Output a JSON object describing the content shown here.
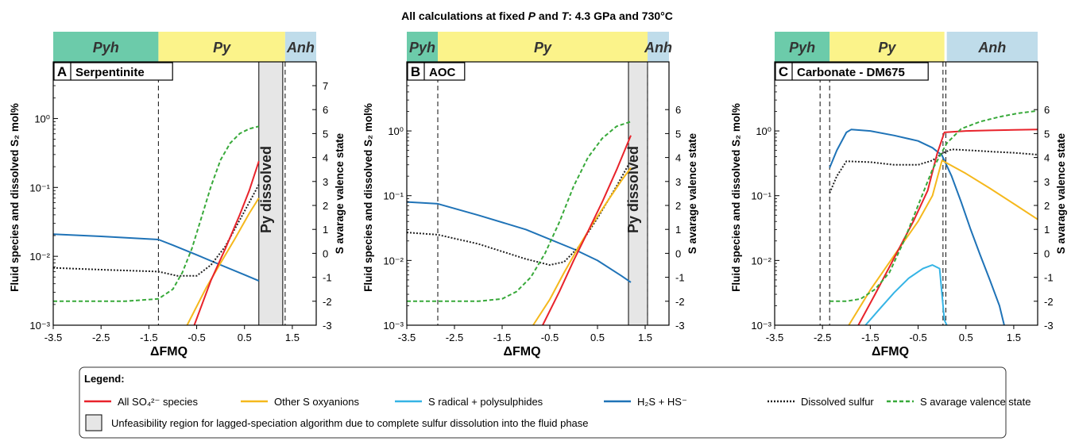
{
  "figure_title": {
    "prefix": "All calculations at fixed ",
    "P": "P",
    "and": " and ",
    "T": "T",
    "suffix": ": 4.3 GPa and 730°C"
  },
  "colors": {
    "so4": "#e8232b",
    "oxyanions": "#f5b81c",
    "radical": "#35b4e5",
    "h2s": "#1f73b7",
    "dissolved": "#222222",
    "valence": "#38a93a",
    "pyh": "#6ccbaa",
    "py": "#fbf38a",
    "anh": "#bfdcea",
    "unfeasible": "#e6e6e6"
  },
  "chart_data": [
    {
      "type": "line",
      "panel": "A",
      "title": "Serpentinite",
      "xlabel": "ΔFMQ",
      "ylabel": "Fluid species and dissolved S₂ mol%",
      "y2label": "S avarage valence state",
      "xlim": [
        -3.5,
        2.0
      ],
      "ylim": [
        0.001,
        3
      ],
      "y2lim": [
        -3,
        7
      ],
      "y_scale": "log",
      "x_ticks": [
        "-3.5",
        "-2.5",
        "-1.5",
        "-0.5",
        "0.5",
        "1.5"
      ],
      "x_tick_values": [
        -3.5,
        -2.5,
        -1.5,
        -0.5,
        0.5,
        1.5
      ],
      "y_ticks": [
        "10⁻³",
        "10⁻²",
        "10⁻¹",
        "10⁰"
      ],
      "y_tick_values": [
        0.001,
        0.01,
        0.1,
        1
      ],
      "y2_ticks": [
        "-3",
        "-2",
        "-1",
        "0",
        "1",
        "2",
        "3",
        "4",
        "5",
        "6",
        "7"
      ],
      "y2_tick_values": [
        -3,
        -2,
        -1,
        0,
        1,
        2,
        3,
        4,
        5,
        6,
        7
      ],
      "stability": [
        {
          "label": "Pyh",
          "from": -3.5,
          "to": -1.3,
          "color": "#6ccbaa"
        },
        {
          "label": "Py",
          "from": -1.3,
          "to": 1.35,
          "color": "#fbf38a"
        },
        {
          "label": "Anh",
          "from": 1.35,
          "to": 2.0,
          "color": "#bfdcea"
        }
      ],
      "vlines": [
        -1.3,
        1.35
      ],
      "unfeasible": {
        "from": 0.8,
        "to": 1.3,
        "label": "Py dissolved"
      },
      "series": [
        {
          "key": "h2s",
          "axis": "left",
          "x": [
            -3.5,
            -2.5,
            -1.3,
            -1.0,
            -0.5,
            0.0,
            0.5,
            0.8
          ],
          "y": [
            0.021,
            0.0195,
            0.0175,
            0.0145,
            0.0105,
            0.0075,
            0.0054,
            0.0044
          ]
        },
        {
          "key": "dissolved",
          "axis": "left",
          "x": [
            -3.5,
            -2.5,
            -1.3,
            -0.9,
            -0.5,
            -0.2,
            0.1,
            0.5,
            0.8
          ],
          "y": [
            0.0068,
            0.0064,
            0.006,
            0.0052,
            0.0052,
            0.0075,
            0.014,
            0.045,
            0.11
          ]
        },
        {
          "key": "oxyanions",
          "axis": "left",
          "x": [
            -0.7,
            -0.3,
            0.0,
            0.3,
            0.6,
            0.8
          ],
          "y": [
            0.001,
            0.0035,
            0.008,
            0.018,
            0.042,
            0.07
          ]
        },
        {
          "key": "so4",
          "axis": "left",
          "x": [
            -0.55,
            -0.2,
            0.1,
            0.4,
            0.6,
            0.8
          ],
          "y": [
            0.001,
            0.0045,
            0.013,
            0.04,
            0.09,
            0.24
          ]
        },
        {
          "key": "valence",
          "axis": "right",
          "x": [
            -3.5,
            -2.0,
            -1.3,
            -1.0,
            -0.8,
            -0.6,
            -0.4,
            -0.2,
            0.0,
            0.2,
            0.4,
            0.6,
            0.8
          ],
          "y": [
            -2.0,
            -2.0,
            -1.9,
            -1.5,
            -0.8,
            0.2,
            1.5,
            2.8,
            3.9,
            4.6,
            5.0,
            5.2,
            5.3
          ]
        }
      ]
    },
    {
      "type": "line",
      "panel": "B",
      "title": "AOC",
      "xlabel": "ΔFMQ",
      "ylabel": "Fluid species and dissolved S₂ mol%",
      "y2label": "S avarage valence state",
      "xlim": [
        -3.5,
        2.0
      ],
      "ylim": [
        0.001,
        5
      ],
      "y2lim": [
        -3,
        7
      ],
      "y_scale": "log",
      "x_ticks": [
        "-3.5",
        "-2.5",
        "-1.5",
        "-0.5",
        "0.5",
        "1.5"
      ],
      "x_tick_values": [
        -3.5,
        -2.5,
        -1.5,
        -0.5,
        0.5,
        1.5
      ],
      "y_ticks": [
        "10⁻³",
        "10⁻²",
        "10⁻¹",
        "10⁰"
      ],
      "y_tick_values": [
        0.001,
        0.01,
        0.1,
        1
      ],
      "y2_ticks": [
        "-3",
        "-2",
        "-1",
        "0",
        "1",
        "2",
        "3",
        "4",
        "5",
        "6"
      ],
      "y2_tick_values": [
        -3,
        -2,
        -1,
        0,
        1,
        2,
        3,
        4,
        5,
        6
      ],
      "stability": [
        {
          "label": "Pyh",
          "from": -3.5,
          "to": -2.85,
          "color": "#6ccbaa"
        },
        {
          "label": "Py",
          "from": -2.85,
          "to": 1.55,
          "color": "#fbf38a"
        },
        {
          "label": "Anh",
          "from": 1.55,
          "to": 2.0,
          "color": "#bfdcea"
        }
      ],
      "vlines": [
        -2.85,
        1.55
      ],
      "unfeasible": {
        "from": 1.15,
        "to": 1.55,
        "label": "Py dissolved"
      },
      "series": [
        {
          "key": "h2s",
          "axis": "left",
          "x": [
            -3.5,
            -2.85,
            -2.0,
            -1.0,
            0.0,
            0.5,
            1.0,
            1.2
          ],
          "y": [
            0.08,
            0.075,
            0.05,
            0.03,
            0.015,
            0.01,
            0.0058,
            0.0046
          ]
        },
        {
          "key": "dissolved",
          "axis": "left",
          "x": [
            -3.5,
            -2.85,
            -2.0,
            -1.0,
            -0.5,
            -0.2,
            0.1,
            0.5,
            0.9,
            1.2
          ],
          "y": [
            0.027,
            0.025,
            0.018,
            0.0105,
            0.0085,
            0.0095,
            0.016,
            0.045,
            0.14,
            0.35
          ]
        },
        {
          "key": "oxyanions",
          "axis": "left",
          "x": [
            -0.85,
            -0.5,
            -0.2,
            0.1,
            0.4,
            0.7,
            1.0,
            1.2
          ],
          "y": [
            0.001,
            0.0025,
            0.0065,
            0.016,
            0.037,
            0.08,
            0.17,
            0.27
          ]
        },
        {
          "key": "so4",
          "axis": "left",
          "x": [
            -0.65,
            -0.3,
            0.0,
            0.3,
            0.6,
            0.9,
            1.2
          ],
          "y": [
            0.001,
            0.0033,
            0.01,
            0.028,
            0.08,
            0.25,
            0.85
          ]
        },
        {
          "key": "valence",
          "axis": "right",
          "x": [
            -3.5,
            -2.0,
            -1.5,
            -1.2,
            -0.9,
            -0.6,
            -0.3,
            0.0,
            0.3,
            0.6,
            0.9,
            1.2
          ],
          "y": [
            -2.0,
            -2.0,
            -1.9,
            -1.6,
            -1.0,
            0.0,
            1.3,
            2.8,
            4.0,
            4.8,
            5.3,
            5.5
          ]
        }
      ]
    },
    {
      "type": "line",
      "panel": "C",
      "title": "Carbonate - DM675",
      "xlabel": "ΔFMQ",
      "ylabel": "Fluid species and dissolved S₂ mol%",
      "y2label": "S avarage valence state",
      "xlim": [
        -3.5,
        2.0
      ],
      "ylim": [
        0.001,
        5
      ],
      "y2lim": [
        -3,
        7
      ],
      "y_scale": "log",
      "x_ticks": [
        "-3.5",
        "-2.5",
        "-1.5",
        "-0.5",
        "0.5",
        "1.5"
      ],
      "x_tick_values": [
        -3.5,
        -2.5,
        -1.5,
        -0.5,
        0.5,
        1.5
      ],
      "y_ticks": [
        "10⁻³",
        "10⁻²",
        "10⁻¹",
        "10⁰"
      ],
      "y_tick_values": [
        0.001,
        0.01,
        0.1,
        1
      ],
      "y2_ticks": [
        "-3",
        "-2",
        "-1",
        "0",
        "1",
        "2",
        "3",
        "4",
        "5",
        "6"
      ],
      "y2_tick_values": [
        -3,
        -2,
        -1,
        0,
        1,
        2,
        3,
        4,
        5,
        6
      ],
      "stability": [
        {
          "label": "Pyh",
          "from": -3.5,
          "to": -2.35,
          "color": "#6ccbaa"
        },
        {
          "label": "Py",
          "from": -2.35,
          "to": 0.05,
          "color": "#fbf38a"
        },
        {
          "label": "Anh",
          "from": 0.1,
          "to": 2.0,
          "color": "#bfdcea"
        }
      ],
      "vlines": [
        -2.55,
        -2.35,
        0.02,
        0.08
      ],
      "unfeasible": null,
      "series": [
        {
          "key": "h2s",
          "axis": "left",
          "x": [
            -2.35,
            -2.2,
            -2.0,
            -1.9,
            -1.5,
            -1.0,
            -0.5,
            -0.2,
            0.0,
            0.2,
            0.4,
            0.6,
            0.8,
            1.0,
            1.2,
            1.3
          ],
          "y": [
            0.27,
            0.5,
            0.95,
            1.05,
            1.0,
            0.85,
            0.7,
            0.55,
            0.42,
            0.2,
            0.08,
            0.03,
            0.012,
            0.005,
            0.002,
            0.001
          ]
        },
        {
          "key": "radical",
          "axis": "left",
          "x": [
            -1.6,
            -1.3,
            -1.0,
            -0.7,
            -0.4,
            -0.2,
            -0.05,
            0.0,
            0.05,
            0.1
          ],
          "y": [
            0.001,
            0.0018,
            0.0032,
            0.0053,
            0.0075,
            0.0085,
            0.0075,
            0.003,
            0.0012,
            0.001
          ]
        },
        {
          "key": "dissolved",
          "axis": "left",
          "x": [
            -2.35,
            -2.2,
            -2.0,
            -1.5,
            -1.0,
            -0.5,
            -0.2,
            0.0,
            0.2,
            0.6,
            1.0,
            1.5,
            2.0
          ],
          "y": [
            0.11,
            0.2,
            0.34,
            0.33,
            0.3,
            0.3,
            0.35,
            0.45,
            0.52,
            0.5,
            0.48,
            0.46,
            0.43
          ]
        },
        {
          "key": "oxyanions",
          "axis": "left",
          "x": [
            -1.95,
            -1.5,
            -1.0,
            -0.5,
            -0.2,
            0.0,
            0.5,
            1.0,
            1.5,
            2.0
          ],
          "y": [
            0.001,
            0.0035,
            0.012,
            0.04,
            0.1,
            0.35,
            0.22,
            0.13,
            0.075,
            0.043
          ]
        },
        {
          "key": "so4",
          "axis": "left",
          "x": [
            -1.75,
            -1.4,
            -1.0,
            -0.6,
            -0.3,
            -0.1,
            0.05,
            0.5,
            1.0,
            1.5,
            2.0
          ],
          "y": [
            0.001,
            0.003,
            0.011,
            0.04,
            0.12,
            0.45,
            0.95,
            1.0,
            1.02,
            1.04,
            1.05
          ]
        },
        {
          "key": "valence",
          "axis": "right",
          "x": [
            -2.35,
            -2.0,
            -1.7,
            -1.4,
            -1.1,
            -0.8,
            -0.5,
            -0.2,
            0.1,
            0.4,
            0.8,
            1.2,
            1.6,
            2.0
          ],
          "y": [
            -2.0,
            -2.0,
            -1.9,
            -1.5,
            -0.8,
            0.5,
            2.0,
            3.5,
            4.6,
            5.2,
            5.5,
            5.7,
            5.85,
            5.95
          ]
        }
      ]
    }
  ],
  "legend": {
    "title": "Legend:",
    "items": [
      {
        "key": "so4",
        "label": "All SO₄²⁻ species"
      },
      {
        "key": "oxyanions",
        "label": "Other S oxyanions"
      },
      {
        "key": "radical",
        "label": "S radical + polysulphides"
      },
      {
        "key": "h2s",
        "label": "H₂S + HS⁻"
      },
      {
        "key": "dissolved",
        "label": "Dissolved sulfur"
      },
      {
        "key": "valence",
        "label": "S avarage valence state"
      }
    ],
    "box_label": "Unfeasibility region for lagged-speciation algorithm due to complete sulfur dissolution into the fluid phase"
  }
}
